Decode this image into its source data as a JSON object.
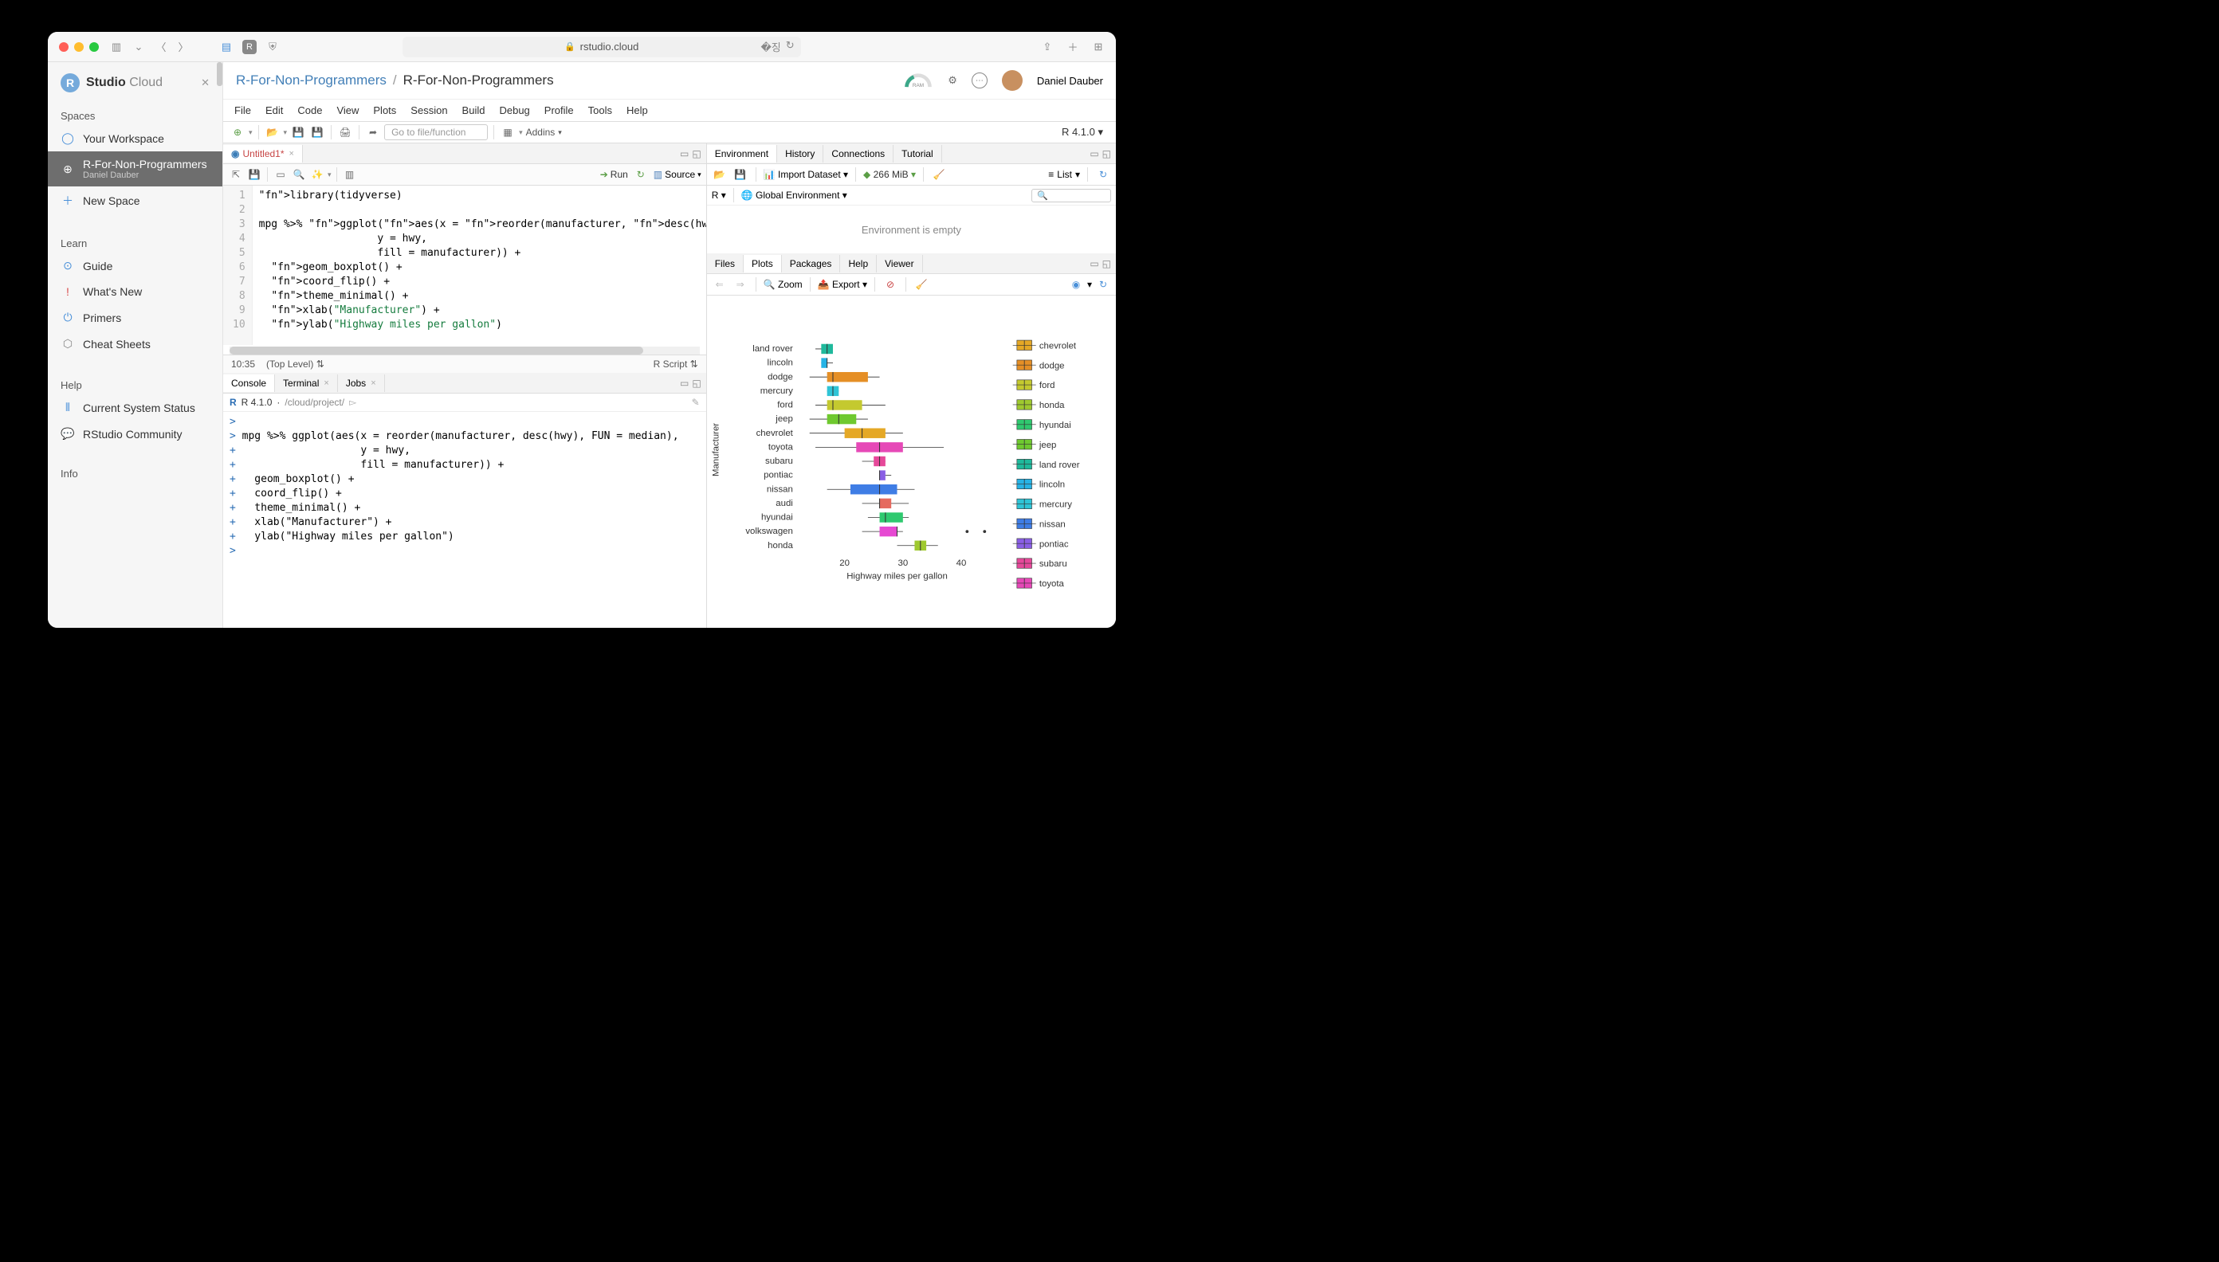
{
  "browser": {
    "url_host": "rstudio.cloud",
    "secure": true
  },
  "brand": {
    "logo_letter": "R",
    "name_bold": "Studio",
    "name_light": " Cloud"
  },
  "sidebar": {
    "sections": {
      "spaces": "Spaces",
      "learn": "Learn",
      "help": "Help",
      "info": "Info"
    },
    "your_workspace": "Your Workspace",
    "active_space": {
      "name": "R-For-Non-Programmers",
      "owner": "Daniel Dauber"
    },
    "new_space": "New Space",
    "guide": "Guide",
    "whats_new": "What's New",
    "primers": "Primers",
    "cheat_sheets": "Cheat Sheets",
    "system_status": "Current System Status",
    "community": "RStudio Community"
  },
  "breadcrumb": {
    "workspace": "R-For-Non-Programmers",
    "project": "R-For-Non-Programmers"
  },
  "header": {
    "ram_label": "RAM",
    "user_name": "Daniel Dauber"
  },
  "menu": [
    "File",
    "Edit",
    "Code",
    "View",
    "Plots",
    "Session",
    "Build",
    "Debug",
    "Profile",
    "Tools",
    "Help"
  ],
  "toolbar": {
    "goto_placeholder": "Go to file/function",
    "addins": "Addins",
    "r_version": "R 4.1.0"
  },
  "source": {
    "tab_name": "Untitled1*",
    "run": "Run",
    "source_btn": "Source",
    "lines": [
      "library(tidyverse)",
      "",
      "mpg %>% ggplot(aes(x = reorder(manufacturer, desc(hwy), FUN = median),",
      "                   y = hwy,",
      "                   fill = manufacturer)) +",
      "  geom_boxplot() +",
      "  coord_flip() +",
      "  theme_minimal() +",
      "  xlab(\"Manufacturer\") +",
      "  ylab(\"Highway miles per gallon\")"
    ],
    "status_pos": "10:35",
    "status_scope": "(Top Level)",
    "status_type": "R Script"
  },
  "console_tabs": {
    "console": "Console",
    "terminal": "Terminal",
    "jobs": "Jobs"
  },
  "console": {
    "r_version": "R 4.1.0",
    "path": "/cloud/project/",
    "lines": [
      {
        "p": ">",
        "t": ""
      },
      {
        "p": ">",
        "t": "mpg %>% ggplot(aes(x = reorder(manufacturer, desc(hwy), FUN = median),"
      },
      {
        "p": "+",
        "t": "                   y = hwy,"
      },
      {
        "p": "+",
        "t": "                   fill = manufacturer)) +"
      },
      {
        "p": "+",
        "t": "  geom_boxplot() +"
      },
      {
        "p": "+",
        "t": "  coord_flip() +"
      },
      {
        "p": "+",
        "t": "  theme_minimal() +"
      },
      {
        "p": "+",
        "t": "  xlab(\"Manufacturer\") +"
      },
      {
        "p": "+",
        "t": "  ylab(\"Highway miles per gallon\")"
      },
      {
        "p": ">",
        "t": ""
      }
    ]
  },
  "env_tabs": [
    "Environment",
    "History",
    "Connections",
    "Tutorial"
  ],
  "env_toolbar": {
    "import": "Import Dataset",
    "mem": "266 MiB",
    "list": "List"
  },
  "env_sub": {
    "lang": "R",
    "scope": "Global Environment"
  },
  "env_empty": "Environment is empty",
  "files_tabs": [
    "Files",
    "Plots",
    "Packages",
    "Help",
    "Viewer"
  ],
  "files_active": 1,
  "plot_toolbar": {
    "zoom": "Zoom",
    "export": "Export"
  },
  "plot": {
    "ylabel": "Manufacturer",
    "xlabel": "Highway miles per gallon",
    "xticks": [
      20,
      30,
      40
    ],
    "xlim": [
      12,
      46
    ],
    "manufacturers": [
      {
        "name": "land rover",
        "q1": 16,
        "med": 17,
        "q3": 18,
        "lo": 15,
        "hi": 18,
        "color": "#1fb99c"
      },
      {
        "name": "lincoln",
        "q1": 16,
        "med": 17,
        "q3": 17,
        "lo": 16,
        "hi": 18,
        "color": "#26b3e5"
      },
      {
        "name": "dodge",
        "q1": 17,
        "med": 18,
        "q3": 24,
        "lo": 14,
        "hi": 26,
        "color": "#e58f26"
      },
      {
        "name": "mercury",
        "q1": 17,
        "med": 18,
        "q3": 19,
        "lo": 17,
        "hi": 19,
        "color": "#2fc4d6"
      },
      {
        "name": "ford",
        "q1": 17,
        "med": 18,
        "q3": 23,
        "lo": 15,
        "hi": 27,
        "color": "#c4c92f"
      },
      {
        "name": "jeep",
        "q1": 17,
        "med": 19,
        "q3": 22,
        "lo": 14,
        "hi": 24,
        "color": "#6fc92f"
      },
      {
        "name": "chevrolet",
        "q1": 20,
        "med": 23,
        "q3": 27,
        "lo": 14,
        "hi": 30,
        "color": "#e5a826"
      },
      {
        "name": "toyota",
        "q1": 22,
        "med": 26,
        "q3": 30,
        "lo": 15,
        "hi": 37,
        "color": "#e649b7"
      },
      {
        "name": "subaru",
        "q1": 25,
        "med": 26,
        "q3": 27,
        "lo": 23,
        "hi": 27,
        "color": "#e6499a"
      },
      {
        "name": "pontiac",
        "q1": 26,
        "med": 26,
        "q3": 27,
        "lo": 26,
        "hi": 28,
        "color": "#8a5fe5"
      },
      {
        "name": "nissan",
        "q1": 21,
        "med": 26,
        "q3": 29,
        "lo": 17,
        "hi": 32,
        "color": "#3f7de5"
      },
      {
        "name": "audi",
        "q1": 26,
        "med": 26,
        "q3": 28,
        "lo": 23,
        "hi": 31,
        "color": "#e56a5f"
      },
      {
        "name": "hyundai",
        "q1": 26,
        "med": 27,
        "q3": 30,
        "lo": 24,
        "hi": 31,
        "color": "#2fc96f"
      },
      {
        "name": "volkswagen",
        "q1": 26,
        "med": 29,
        "q3": 29,
        "lo": 23,
        "hi": 30,
        "outliers": [
          41,
          44
        ],
        "color": "#e649d2"
      },
      {
        "name": "honda",
        "q1": 32,
        "med": 33,
        "q3": 34,
        "lo": 29,
        "hi": 36,
        "color": "#9fc92f"
      }
    ],
    "legend": [
      "chevrolet",
      "dodge",
      "ford",
      "honda",
      "hyundai",
      "jeep",
      "land rover",
      "lincoln",
      "mercury",
      "nissan",
      "pontiac",
      "subaru",
      "toyota"
    ],
    "legend_colors": {
      "audi": "#e56a5f",
      "chevrolet": "#e5a826",
      "dodge": "#e58f26",
      "ford": "#c4c92f",
      "honda": "#9fc92f",
      "hyundai": "#2fc96f",
      "jeep": "#6fc92f",
      "land rover": "#1fb99c",
      "lincoln": "#26b3e5",
      "mercury": "#2fc4d6",
      "nissan": "#3f7de5",
      "pontiac": "#8a5fe5",
      "subaru": "#e6499a",
      "toyota": "#e649b7",
      "volkswagen": "#e649d2"
    }
  }
}
